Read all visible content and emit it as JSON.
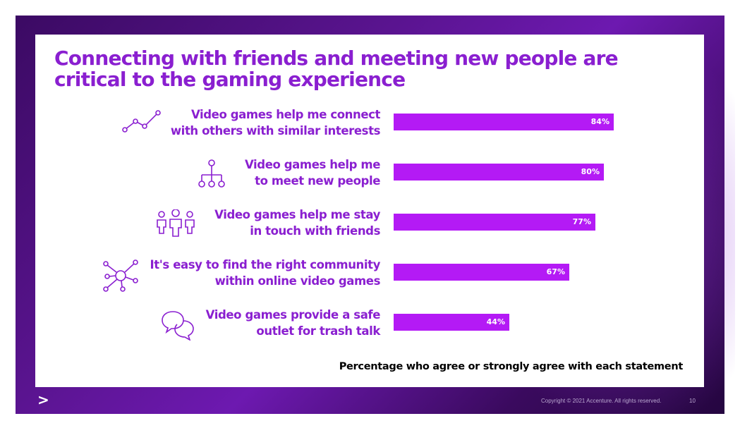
{
  "slide": {
    "title": "Connecting with friends and meeting new people are critical to the gaming experience",
    "note": "Percentage who agree or strongly agree with each statement",
    "copyright": "Copyright © 2021 Accenture. All rights reserved.",
    "page_number": "10",
    "logo_mark": ">"
  },
  "colors": {
    "accent": "#8a1fd0",
    "bar": "#b41af5",
    "background_dark": "#3b0a63"
  },
  "chart_data": {
    "type": "bar",
    "orientation": "horizontal",
    "categories": [
      "Video games help me connect with others with similar interests",
      "Video games help me to meet new people",
      "Video games help me stay in touch with friends",
      "It's easy to find the right community within online video games",
      "Video games provide a safe outlet for trash talk"
    ],
    "label_lines": [
      [
        "Video games help me connect",
        "with others with similar interests"
      ],
      [
        "Video games help me",
        "to meet new people"
      ],
      [
        "Video games help me stay",
        "in touch with friends"
      ],
      [
        "It's easy to find the right community",
        "within online video games"
      ],
      [
        "Video games provide a safe",
        "outlet for trash talk"
      ]
    ],
    "values": [
      84,
      80,
      77,
      67,
      44
    ],
    "value_labels": [
      "84%",
      "80%",
      "77%",
      "67%",
      "44%"
    ],
    "icons": [
      "trend-line-icon",
      "hierarchy-icon",
      "people-group-icon",
      "network-hub-icon",
      "chat-bubbles-icon"
    ],
    "xlim": [
      0,
      100
    ],
    "grid": false,
    "legend": "none"
  }
}
